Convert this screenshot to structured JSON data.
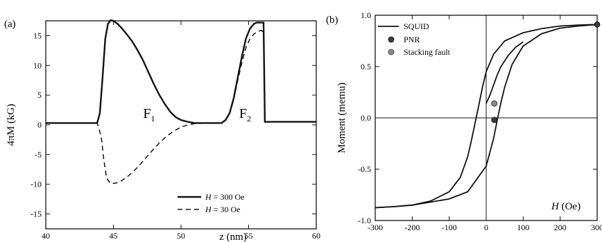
{
  "chart_data": [
    {
      "panel_label": "(a)",
      "type": "line",
      "xlabel": "z (nm)",
      "ylabel": "4πM (kG)",
      "xlim": [
        40,
        60
      ],
      "ylim": [
        -17.5,
        17.5
      ],
      "xticks": [
        40,
        45,
        50,
        55,
        60
      ],
      "yticks": [
        -15,
        -10,
        -5,
        0,
        5,
        10,
        15
      ],
      "grid": false,
      "legend_position": "bottom-right",
      "annotations": [
        {
          "text": "F",
          "sub": "1",
          "x": 47.2,
          "y": 0
        },
        {
          "text": "F",
          "sub": "2",
          "x": 54.3,
          "y": 0
        }
      ],
      "series": [
        {
          "name": "H = 300 Oe",
          "name_parts": {
            "var": "H",
            "rest": " = 300 Oe"
          },
          "style": "solid",
          "x": [
            40,
            43.8,
            44.0,
            44.2,
            44.4,
            44.6,
            44.8,
            45.0,
            45.3,
            45.6,
            46.0,
            46.4,
            46.8,
            47.2,
            47.6,
            48.0,
            48.4,
            48.8,
            49.2,
            49.6,
            50.0,
            50.5,
            51.0,
            52.0,
            53.0,
            53.3,
            53.6,
            53.9,
            54.2,
            54.5,
            54.8,
            55.1,
            55.4,
            55.6,
            55.8,
            56.0,
            56.1,
            56.2,
            56.4,
            57.0,
            60
          ],
          "y": [
            0.3,
            0.3,
            2.0,
            8.0,
            14.5,
            17.0,
            17.6,
            17.5,
            17.0,
            16.3,
            15.2,
            14.0,
            12.5,
            10.8,
            8.8,
            6.8,
            5.0,
            3.5,
            2.2,
            1.3,
            0.8,
            0.5,
            0.3,
            0.3,
            0.3,
            0.8,
            2.0,
            4.5,
            8.0,
            11.5,
            14.5,
            16.2,
            17.0,
            17.2,
            17.2,
            17.2,
            17.2,
            0.5,
            0.5,
            0.5,
            0.5
          ]
        },
        {
          "name": "H = 30 Oe",
          "name_parts": {
            "var": "H",
            "rest": " = 30 Oe"
          },
          "style": "dashed",
          "x": [
            40,
            43.8,
            44.1,
            44.3,
            44.5,
            44.8,
            45.2,
            45.6,
            46.0,
            46.5,
            47.0,
            47.5,
            48.0,
            48.5,
            49.0,
            49.5,
            50.0,
            50.5,
            51.0,
            52.0,
            53.0,
            53.3,
            53.6,
            53.9,
            54.2,
            54.5,
            54.8,
            55.1,
            55.4,
            55.7,
            55.9,
            56.0,
            56.1,
            56.2,
            56.4,
            57.0,
            60
          ],
          "y": [
            0.3,
            0.3,
            -2.0,
            -6.0,
            -9.0,
            -9.9,
            -9.8,
            -9.4,
            -8.8,
            -7.8,
            -6.6,
            -5.3,
            -4.0,
            -2.8,
            -1.8,
            -1.0,
            -0.4,
            0.0,
            0.2,
            0.3,
            0.3,
            0.8,
            2.0,
            4.3,
            7.5,
            10.5,
            13.0,
            14.5,
            15.3,
            15.7,
            15.9,
            15.8,
            15.0,
            0.5,
            0.5,
            0.5,
            0.5
          ]
        }
      ]
    },
    {
      "panel_label": "(b)",
      "type": "scatter",
      "xlabel": "H (Oe)",
      "xlabel_parts": {
        "var": "H",
        "rest": " (Oe)"
      },
      "ylabel": "Moment (memu)",
      "xlim": [
        -300,
        300
      ],
      "ylim": [
        -1.0,
        1.0
      ],
      "xticks": [
        -300,
        -200,
        -100,
        0,
        100,
        200,
        300
      ],
      "yticks": [
        -1.0,
        -0.5,
        0.0,
        0.5,
        1.0
      ],
      "ytick_labels": [
        "-1.0",
        "-0.5",
        "0.0",
        "0.5",
        "1.0"
      ],
      "grid": false,
      "zero_lines": true,
      "legend_position": "top-left",
      "series": [
        {
          "name": "SQUID",
          "style": "line",
          "branch_upper": {
            "x": [
              300,
              250,
              200,
              150,
              100,
              50,
              20,
              0,
              -10,
              -20,
              -30,
              -40,
              -50,
              -70,
              -100,
              -150,
              -200,
              -250,
              -300
            ],
            "y": [
              0.91,
              0.905,
              0.895,
              0.87,
              0.83,
              0.75,
              0.62,
              0.45,
              0.3,
              0.12,
              -0.05,
              -0.22,
              -0.38,
              -0.58,
              -0.72,
              -0.81,
              -0.85,
              -0.865,
              -0.875
            ]
          },
          "branch_lower": {
            "x": [
              -300,
              -250,
              -200,
              -150,
              -100,
              -50,
              0,
              20,
              30,
              40,
              50,
              70,
              100,
              150,
              200,
              250,
              300
            ],
            "y": [
              -0.875,
              -0.865,
              -0.85,
              -0.82,
              -0.79,
              -0.72,
              -0.47,
              -0.2,
              -0.02,
              0.15,
              0.3,
              0.52,
              0.7,
              0.82,
              0.875,
              0.895,
              0.91
            ]
          },
          "initial": {
            "x": [
              0,
              10,
              20,
              30,
              40,
              60,
              80,
              100
            ],
            "y": [
              0.14,
              0.22,
              0.32,
              0.42,
              0.5,
              0.61,
              0.69,
              0.74
            ]
          }
        },
        {
          "name": "PNR",
          "style": "marker",
          "color": "#3a3a3a",
          "x": [
            22,
            300
          ],
          "y": [
            -0.02,
            0.91
          ]
        },
        {
          "name": "Stacking fault",
          "style": "marker",
          "color": "#8a8a8a",
          "x": [
            22
          ],
          "y": [
            0.14
          ]
        }
      ]
    }
  ]
}
